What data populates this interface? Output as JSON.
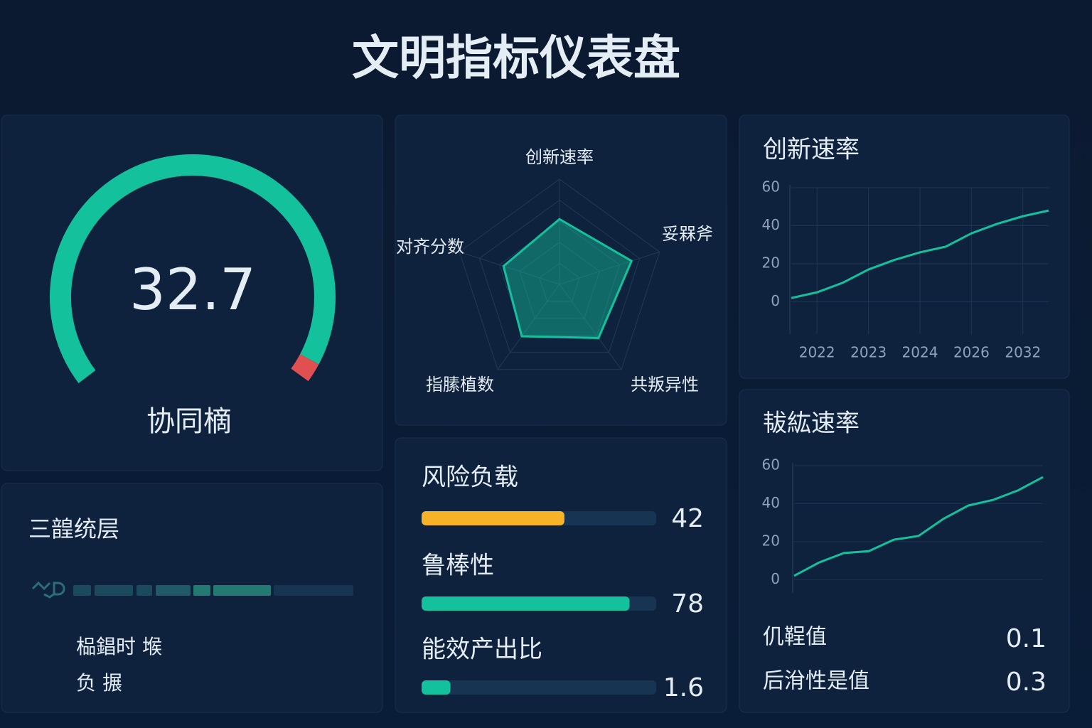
{
  "title": "文明指标仪表盘",
  "chart_data": [
    {
      "type": "gauge",
      "value": 32.7,
      "label": "协同樀",
      "color": "#13c29c"
    },
    {
      "type": "radar",
      "categories": [
        "创新速率",
        "妥槑斧",
        "共叛异性",
        "指膆植数",
        "对齐分数"
      ],
      "values": [
        62,
        72,
        63,
        61,
        56
      ],
      "rlim": [
        0,
        100
      ],
      "rticks": [
        20,
        40,
        60,
        80,
        100
      ],
      "color": "#13c29c"
    },
    {
      "type": "line",
      "title": "创新速率",
      "categories": [
        null,
        "2022",
        null,
        "2023",
        null,
        "2024",
        null,
        "2026",
        null,
        "2032",
        null
      ],
      "values": [
        2,
        5,
        10,
        17,
        22,
        26,
        29,
        36,
        41,
        45,
        48
      ],
      "ylim": [
        -17,
        60
      ],
      "yticks": [
        0,
        20,
        40,
        60
      ],
      "color": "#13c29c",
      "grid": true
    },
    {
      "type": "line",
      "title": "韨紘速率",
      "values": [
        2,
        9,
        14,
        15,
        21,
        23,
        32,
        39,
        42,
        47,
        54
      ],
      "ylim": [
        -7,
        60
      ],
      "yticks": [
        0,
        20,
        40,
        60
      ],
      "color": "#13c29c",
      "grid": true
    },
    {
      "type": "hbar",
      "items": [
        {
          "name": "风险负载",
          "value": 42,
          "xlim": [
            0,
            69
          ],
          "color": "#f6b327"
        },
        {
          "name": "鲁棒性",
          "value": 78,
          "xlim": [
            0,
            88
          ],
          "color": "#13c29c"
        },
        {
          "name": "能效产出比",
          "value": 1.6,
          "xlim": [
            0,
            13
          ],
          "color": "#13c29c"
        }
      ]
    }
  ],
  "layers": {
    "title": "三韹统层",
    "lines": [
      "榀錩时 堠",
      "负 搌"
    ]
  },
  "metrics": [
    {
      "name": "仉鞓值",
      "value": 0.1
    },
    {
      "name": "后洕性是值",
      "value": 0.3
    }
  ]
}
